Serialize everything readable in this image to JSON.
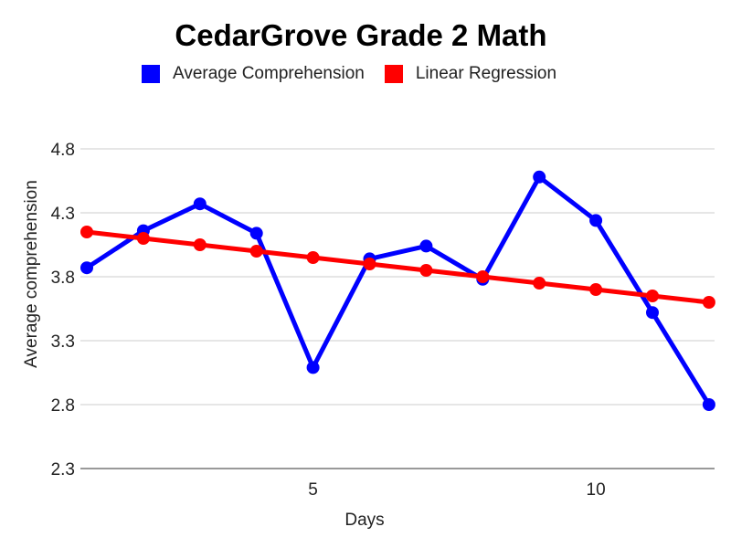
{
  "chart_data": {
    "type": "line",
    "title": "CedarGrove Grade 2 Math",
    "xlabel": "Days",
    "ylabel": "Average comprehension",
    "xlim": [
      1,
      11
    ],
    "ylim": [
      2.3,
      4.8
    ],
    "xticks": [
      5,
      10
    ],
    "yticks": [
      2.3,
      2.8,
      3.3,
      3.8,
      4.3,
      4.8
    ],
    "ytick_labels": [
      "2.3",
      "2.8",
      "3.3",
      "3.8",
      "4.3",
      "4.8"
    ],
    "xtick_labels": [
      "5",
      "10"
    ],
    "grid": "horizontal",
    "legend": "top",
    "series": [
      {
        "name": "Average Comprehension",
        "color": "#0000ff",
        "x": [
          1,
          2,
          3,
          4,
          5,
          6,
          7,
          8,
          9,
          10,
          11
        ],
        "y": [
          3.87,
          4.16,
          4.37,
          4.14,
          3.09,
          3.94,
          4.04,
          3.78,
          4.58,
          4.24,
          3.52
        ]
      },
      {
        "name": "Linear Regression",
        "color": "#ff0000",
        "x": [
          1,
          2,
          3,
          4,
          5,
          6,
          7,
          8,
          9,
          10,
          11
        ],
        "y": [
          4.15,
          4.1,
          4.05,
          4.0,
          3.95,
          3.9,
          3.85,
          3.8,
          3.75,
          3.7,
          3.65
        ]
      }
    ],
    "extra_point": {
      "series": "Average Comprehension",
      "x": 12,
      "y": 2.8
    },
    "extra_regression": {
      "x": 12,
      "y": 3.6
    }
  }
}
